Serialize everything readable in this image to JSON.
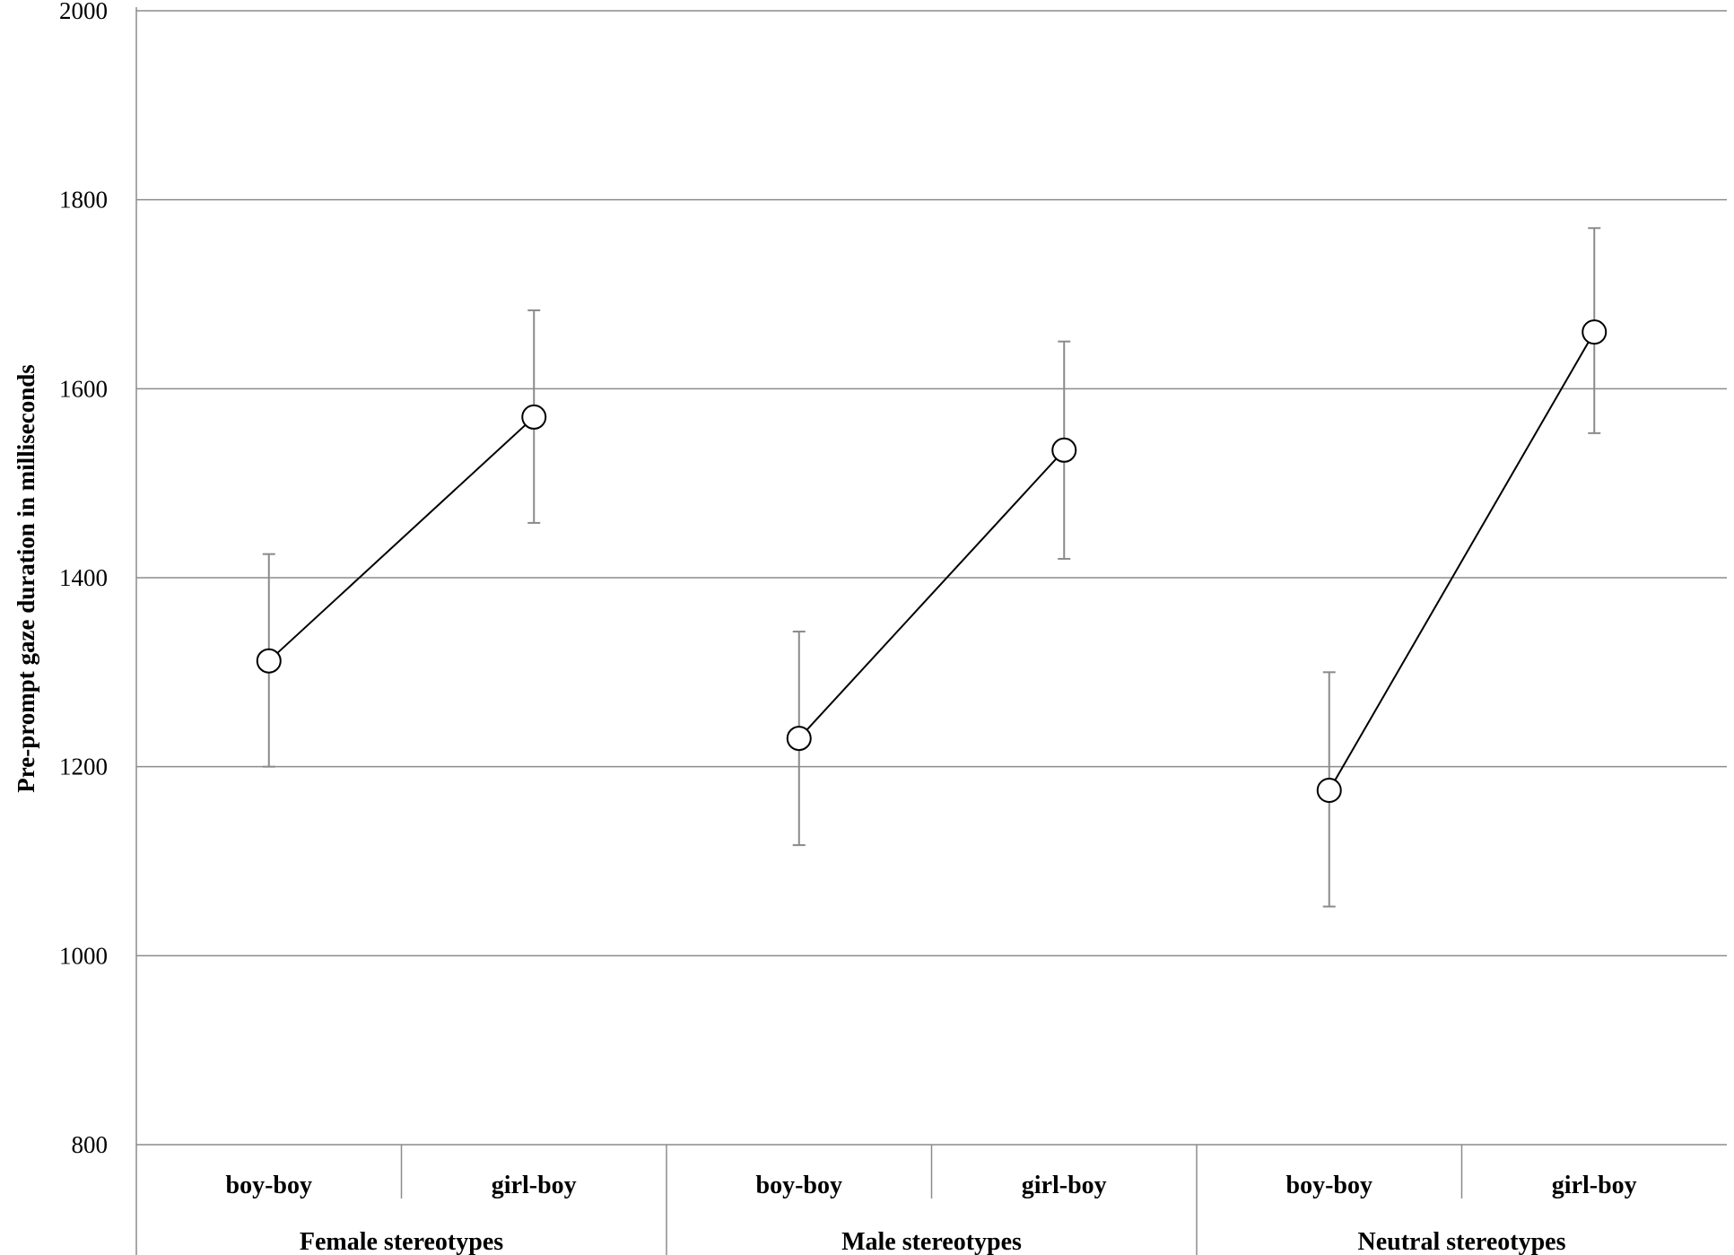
{
  "chart_data": {
    "type": "line",
    "ylabel": "Pre-prompt gaze duration in milliseconds",
    "ylim": [
      800,
      2000
    ],
    "yticks": [
      800,
      1000,
      1200,
      1400,
      1600,
      1800,
      2000
    ],
    "grid": true,
    "groups": [
      {
        "name": "Female stereotypes",
        "categories": [
          "boy-boy",
          "girl-boy"
        ],
        "values": [
          1312,
          1570
        ],
        "error_low": [
          1200,
          1458
        ],
        "error_high": [
          1425,
          1683
        ]
      },
      {
        "name": "Male stereotypes",
        "categories": [
          "boy-boy",
          "girl-boy"
        ],
        "values": [
          1230,
          1535
        ],
        "error_low": [
          1117,
          1420
        ],
        "error_high": [
          1343,
          1650
        ]
      },
      {
        "name": "Neutral stereotypes",
        "categories": [
          "boy-boy",
          "girl-boy"
        ],
        "values": [
          1175,
          1660
        ],
        "error_low": [
          1052,
          1553
        ],
        "error_high": [
          1300,
          1770
        ]
      }
    ]
  }
}
